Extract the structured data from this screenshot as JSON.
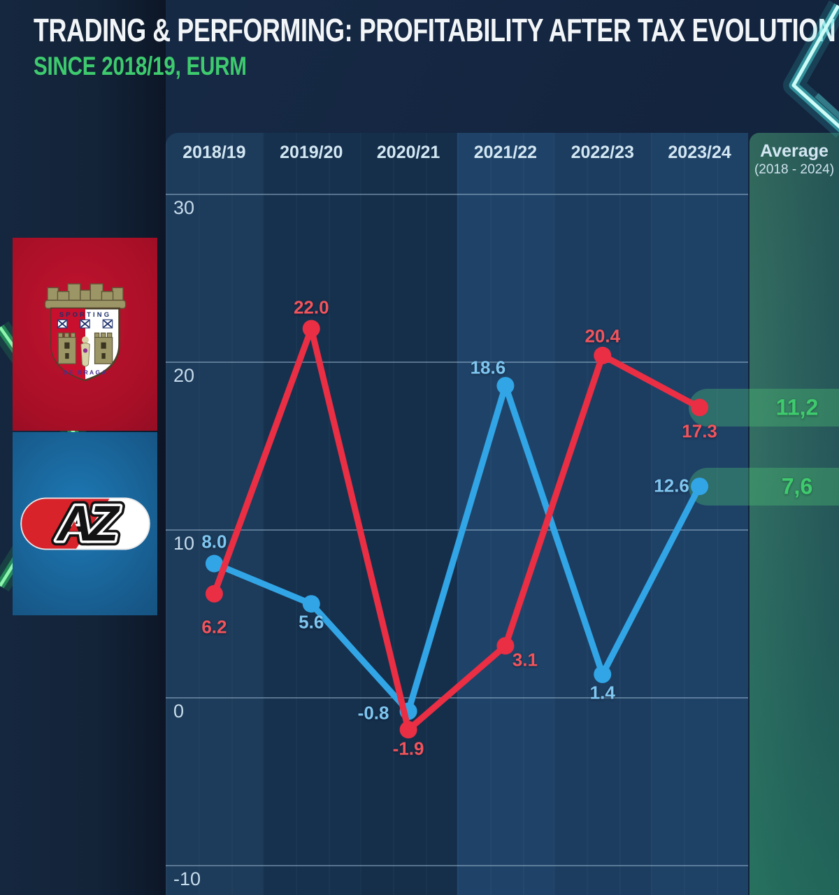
{
  "header": {
    "title": "TRADING & PERFORMING: PROFITABILITY AFTER TAX EVOLUTION",
    "subtitle": "SINCE 2018/19, EURM"
  },
  "logos": {
    "braga": {
      "name": "SC Braga crest",
      "text_top": "SPORTING",
      "text_bottom": "DE BRAGA"
    },
    "az": {
      "name": "AZ Alkmaar logo",
      "text": "AZ"
    }
  },
  "average_column": {
    "label": "Average",
    "sublabel": "(2018 - 2024)"
  },
  "chart_data": {
    "type": "line",
    "title": "Profitability after tax evolution since 2018/19 (EURm)",
    "categories": [
      "2018/19",
      "2019/20",
      "2020/21",
      "2021/22",
      "2022/23",
      "2023/24"
    ],
    "series": [
      {
        "name": "AZ Alkmaar",
        "color": "#31a5e6",
        "label_color": "#7fc6f0",
        "values": [
          8.0,
          5.6,
          -0.8,
          18.6,
          1.4,
          12.6
        ],
        "average": 7.6,
        "average_display": "7,6",
        "label_offsets": [
          [
            0,
            -31
          ],
          [
            0,
            26
          ],
          [
            -50,
            3
          ],
          [
            -25,
            -26
          ],
          [
            0,
            27
          ],
          [
            -40,
            -1
          ]
        ]
      },
      {
        "name": "SC Braga",
        "color": "#ea2e44",
        "label_color": "#f2545c",
        "values": [
          6.2,
          22.0,
          -1.9,
          3.1,
          20.4,
          17.3
        ],
        "average": 11.2,
        "average_display": "11,2",
        "label_offsets": [
          [
            0,
            48
          ],
          [
            0,
            -30
          ],
          [
            0,
            27
          ],
          [
            28,
            20
          ],
          [
            0,
            -27
          ],
          [
            0,
            34
          ]
        ]
      }
    ],
    "y_ticks": [
      30,
      20,
      10,
      0,
      -10
    ],
    "ylim": [
      -11.8,
      33.7
    ],
    "grid": true,
    "legend_position": "left-logos",
    "average_value_color": "#3fcb6d"
  }
}
